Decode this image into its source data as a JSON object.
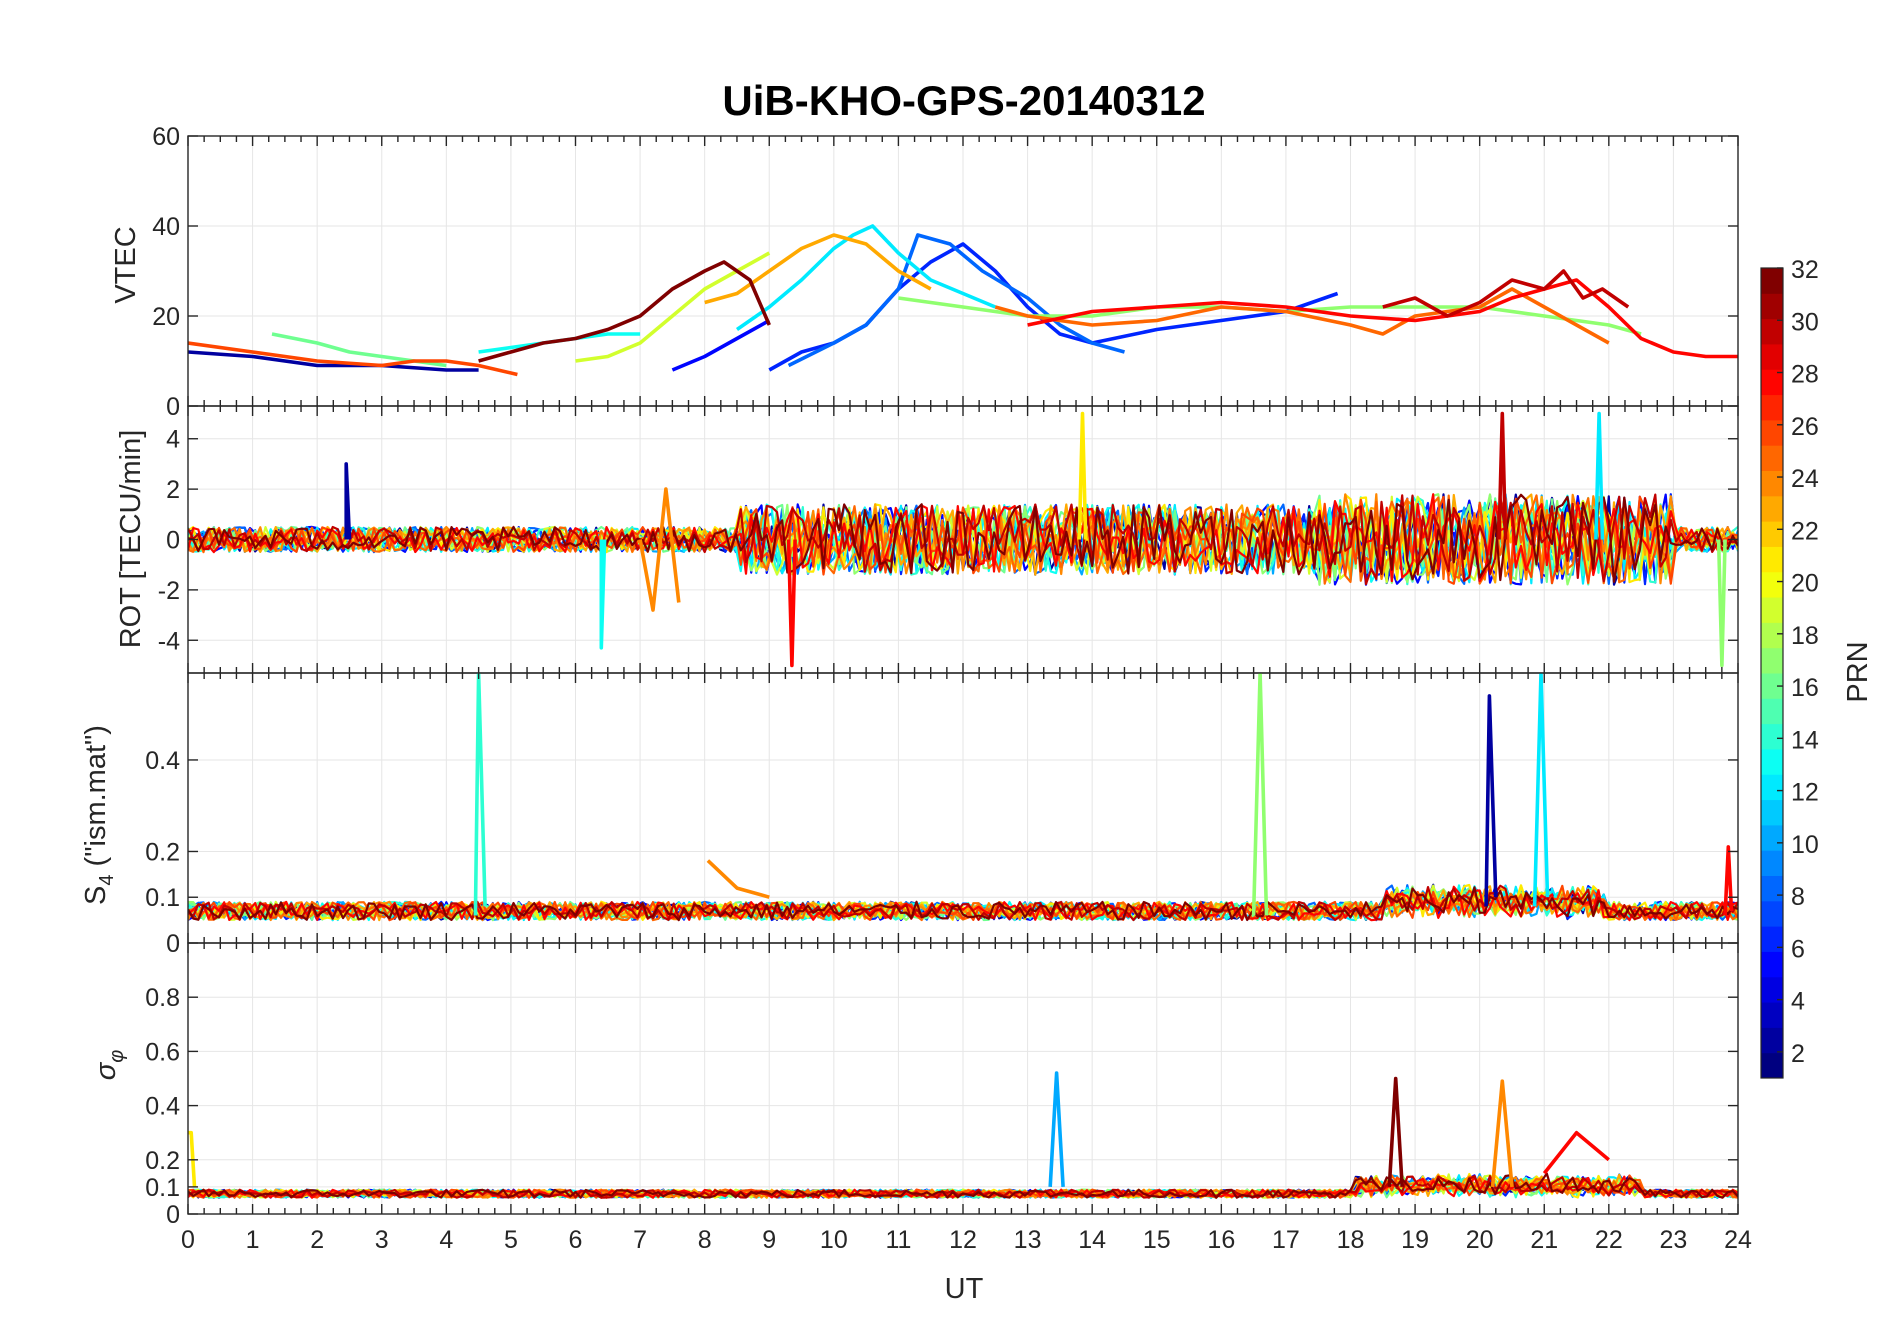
{
  "chart_data": [
    {
      "type": "line",
      "panel": "vtec",
      "title": "UiB-KHO-GPS-20140312",
      "ylabel": "VTEC",
      "xlim": [
        0,
        24
      ],
      "ylim": [
        0,
        60
      ],
      "yticks": [
        0,
        20,
        40,
        60
      ],
      "series": [
        {
          "prn": 2,
          "x": [
            0,
            1,
            2,
            3,
            4,
            4.5
          ],
          "y": [
            12,
            11,
            9,
            9,
            8,
            8
          ]
        },
        {
          "prn": 5,
          "x": [
            7.5,
            8,
            8.5,
            9
          ],
          "y": [
            8,
            11,
            15,
            19
          ]
        },
        {
          "prn": 6,
          "x": [
            9,
            9.5,
            10,
            10.5,
            11,
            11.5,
            12,
            12.5,
            13,
            13.5,
            14,
            15,
            16,
            17,
            17.8
          ],
          "y": [
            8,
            12,
            14,
            18,
            26,
            32,
            36,
            30,
            22,
            16,
            14,
            17,
            19,
            21,
            25
          ]
        },
        {
          "prn": 8,
          "x": [
            9.3,
            10,
            10.5,
            11,
            11.3,
            11.8,
            12.3,
            13,
            13.5,
            14,
            14.5
          ],
          "y": [
            9,
            14,
            18,
            26,
            38,
            36,
            30,
            24,
            18,
            14,
            12
          ]
        },
        {
          "prn": 12,
          "x": [
            8.5,
            9,
            9.5,
            10,
            10.3,
            10.6,
            11,
            11.5,
            12,
            12.5
          ],
          "y": [
            17,
            22,
            28,
            35,
            38,
            40,
            34,
            28,
            25,
            22
          ]
        },
        {
          "prn": 13,
          "x": [
            4.5,
            5,
            5.5,
            6,
            6.5,
            7
          ],
          "y": [
            12,
            13,
            14,
            15,
            16,
            16
          ]
        },
        {
          "prn": 16,
          "x": [
            1.3,
            2,
            2.5,
            3,
            3.5,
            4
          ],
          "y": [
            16,
            14,
            12,
            11,
            10,
            9
          ]
        },
        {
          "prn": 17,
          "x": [
            11,
            12,
            13,
            14,
            15,
            16,
            17,
            18,
            19,
            20,
            21,
            22,
            22.5
          ],
          "y": [
            24,
            22,
            20,
            20,
            22,
            22,
            21,
            22,
            22,
            22,
            20,
            18,
            16
          ]
        },
        {
          "prn": 19,
          "x": [
            6,
            6.5,
            7,
            7.5,
            8,
            8.5,
            9
          ],
          "y": [
            10,
            11,
            14,
            20,
            26,
            30,
            34
          ]
        },
        {
          "prn": 23,
          "x": [
            8,
            8.5,
            9,
            9.5,
            10,
            10.5,
            11,
            11.5
          ],
          "y": [
            23,
            25,
            30,
            35,
            38,
            36,
            30,
            26
          ]
        },
        {
          "prn": 25,
          "x": [
            12.5,
            13,
            14,
            15,
            16,
            17,
            18,
            18.5,
            19,
            20,
            20.5,
            21,
            21.5,
            22
          ],
          "y": [
            22,
            20,
            18,
            19,
            22,
            21,
            18,
            16,
            20,
            22,
            26,
            22,
            18,
            14
          ]
        },
        {
          "prn": 26,
          "x": [
            0,
            1,
            2,
            3,
            3.5,
            4,
            4.5,
            5.1
          ],
          "y": [
            14,
            12,
            10,
            9,
            10,
            10,
            9,
            7
          ]
        },
        {
          "prn": 28,
          "x": [
            13,
            14,
            15,
            16,
            17,
            18,
            19,
            20,
            20.5,
            21,
            21.5,
            22,
            22.5,
            23,
            23.5,
            24
          ],
          "y": [
            18,
            21,
            22,
            23,
            22,
            20,
            19,
            21,
            24,
            26,
            28,
            22,
            15,
            12,
            11,
            11
          ]
        },
        {
          "prn": 30,
          "x": [
            18.5,
            19,
            19.5,
            20,
            20.5,
            21,
            21.3,
            21.6,
            21.9,
            22.3
          ],
          "y": [
            22,
            24,
            20,
            23,
            28,
            26,
            30,
            24,
            26,
            22
          ]
        },
        {
          "prn": 32,
          "x": [
            4.5,
            5,
            5.5,
            6,
            6.5,
            7,
            7.5,
            8,
            8.3,
            8.7,
            9
          ],
          "y": [
            10,
            12,
            14,
            15,
            17,
            20,
            26,
            30,
            32,
            28,
            18
          ]
        }
      ]
    },
    {
      "type": "line",
      "panel": "rot",
      "ylabel": "ROT [TECU/min]",
      "xlim": [
        0,
        24
      ],
      "ylim": [
        -5.3,
        5.3
      ],
      "yticks": [
        -4,
        -2,
        0,
        2,
        4
      ],
      "series": [
        {
          "prn": 2,
          "x": [
            2.45,
            2.45,
            2.5
          ],
          "y": [
            0,
            3,
            0
          ]
        },
        {
          "prn": 13,
          "x": [
            6.4,
            6.4,
            6.45
          ],
          "y": [
            0,
            -4.3,
            0
          ]
        },
        {
          "prn": 24,
          "x": [
            7,
            7.2,
            7.4,
            7.6
          ],
          "y": [
            0,
            -2.8,
            2,
            -2.5
          ]
        },
        {
          "prn": 28,
          "x": [
            9.3,
            9.35,
            9.4
          ],
          "y": [
            0,
            -5,
            0
          ]
        },
        {
          "prn": 21,
          "x": [
            13.8,
            13.85,
            13.9
          ],
          "y": [
            0,
            5,
            0
          ]
        },
        {
          "prn": 30,
          "x": [
            20.3,
            20.35,
            20.4
          ],
          "y": [
            0,
            5,
            0
          ]
        },
        {
          "prn": 12,
          "x": [
            21.8,
            21.85,
            21.9
          ],
          "y": [
            0,
            5,
            0
          ]
        },
        {
          "prn": 17,
          "x": [
            23.7,
            23.75,
            23.8
          ],
          "y": [
            0,
            -5,
            0
          ]
        }
      ]
    },
    {
      "type": "line",
      "panel": "s4",
      "ylabel": "S4 (\"ism.mat\")",
      "xlim": [
        0,
        24
      ],
      "ylim": [
        0,
        0.59
      ],
      "yticks": [
        0,
        0.1,
        0.2,
        0.4
      ],
      "series": [
        {
          "prn": 14,
          "x": [
            4.45,
            4.5,
            4.6
          ],
          "y": [
            0.06,
            0.59,
            0.08
          ]
        },
        {
          "prn": 17,
          "x": [
            16.5,
            16.6,
            16.7
          ],
          "y": [
            0.06,
            0.59,
            0.06
          ]
        },
        {
          "prn": 2,
          "x": [
            20.1,
            20.15,
            20.25
          ],
          "y": [
            0.08,
            0.54,
            0.1
          ]
        },
        {
          "prn": 12,
          "x": [
            20.85,
            20.95,
            21.05
          ],
          "y": [
            0.08,
            0.59,
            0.1
          ]
        },
        {
          "prn": 24,
          "x": [
            8.05,
            8.5,
            9
          ],
          "y": [
            0.18,
            0.12,
            0.1
          ]
        },
        {
          "prn": 28,
          "x": [
            23.8,
            23.85,
            23.9
          ],
          "y": [
            0.06,
            0.21,
            0.07
          ]
        }
      ]
    },
    {
      "type": "line",
      "panel": "sigma_phi",
      "ylabel": "σφ",
      "xlabel": "UT",
      "xlim": [
        0,
        24
      ],
      "ylim": [
        0,
        1
      ],
      "yticks": [
        0,
        0.1,
        0.2,
        0.4,
        0.6,
        0.8
      ],
      "xticks": [
        0,
        1,
        2,
        3,
        4,
        5,
        6,
        7,
        8,
        9,
        10,
        11,
        12,
        13,
        14,
        15,
        16,
        17,
        18,
        19,
        20,
        21,
        22,
        23,
        24
      ],
      "series": [
        {
          "prn": 10,
          "x": [
            13.35,
            13.45,
            13.55
          ],
          "y": [
            0.1,
            0.52,
            0.1
          ]
        },
        {
          "prn": 32,
          "x": [
            18.6,
            18.7,
            18.8
          ],
          "y": [
            0.1,
            0.5,
            0.1
          ]
        },
        {
          "prn": 24,
          "x": [
            20.2,
            20.35,
            20.5
          ],
          "y": [
            0.1,
            0.49,
            0.1
          ]
        },
        {
          "prn": 28,
          "x": [
            21,
            21.5,
            22
          ],
          "y": [
            0.15,
            0.3,
            0.2
          ]
        },
        {
          "prn": 21,
          "x": [
            0,
            0.05,
            0.1
          ],
          "y": [
            0.3,
            0.3,
            0.1
          ]
        }
      ]
    }
  ],
  "colorbar": {
    "label": "PRN",
    "range": [
      1,
      32
    ],
    "ticks": [
      "2",
      "4",
      "6",
      "8",
      "10",
      "12",
      "14",
      "16",
      "18",
      "20",
      "22",
      "24",
      "26",
      "28",
      "30",
      "32"
    ],
    "colormap": "jet"
  },
  "axis_labels": {
    "title": "UiB-KHO-GPS-20140312",
    "vtec": "VTEC",
    "rot": "ROT [TECU/min]",
    "s4_main": "S",
    "s4_sub": "4",
    "s4_rest": " (\"ism.mat\")",
    "sigma_main": "σ",
    "sigma_sub": "φ",
    "xlabel": "UT",
    "cbar": "PRN"
  }
}
